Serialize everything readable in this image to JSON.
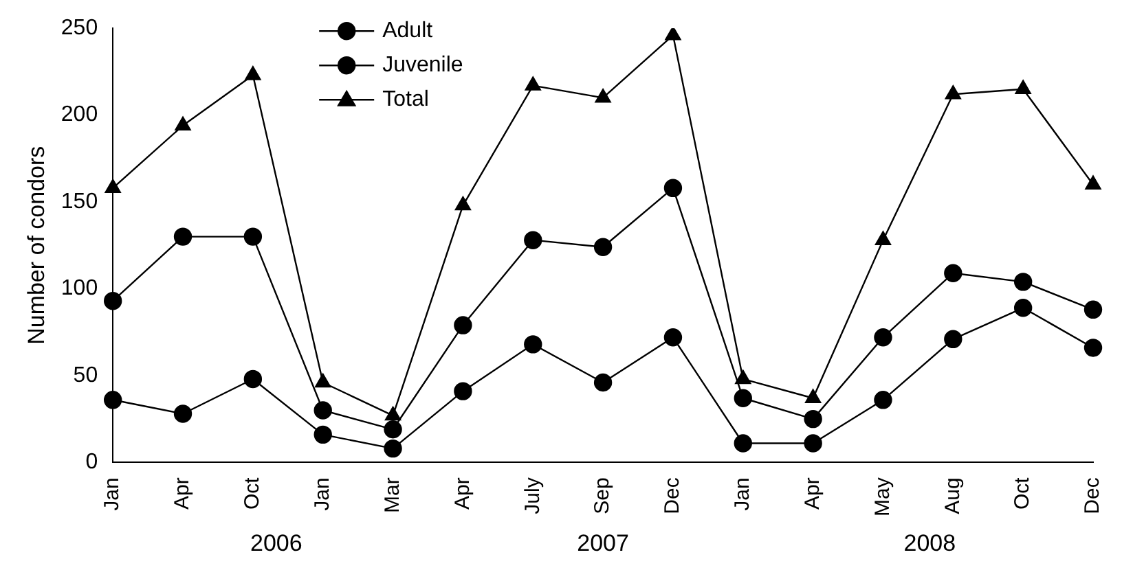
{
  "chart_data": {
    "type": "line",
    "ylabel": "Number of condors",
    "categories": [
      "Jan",
      "Apr",
      "Oct",
      "Jan",
      "Mar",
      "Apr",
      "July",
      "Sep",
      "Dec",
      "Jan",
      "Apr",
      "May",
      "Aug",
      "Oct",
      "Dec"
    ],
    "series": [
      {
        "name": "Adult",
        "color": "#000000",
        "marker": "circle",
        "values": [
          93,
          130,
          130,
          30,
          19,
          79,
          128,
          124,
          158,
          37,
          25,
          72,
          109,
          104,
          88
        ]
      },
      {
        "name": "Juvenile",
        "color": "#000000",
        "marker": "circle",
        "values": [
          36,
          28,
          48,
          16,
          8,
          41,
          68,
          46,
          72,
          11,
          11,
          36,
          71,
          89,
          66
        ]
      },
      {
        "name": "Total",
        "color": "#000000",
        "marker": "triangle",
        "values": [
          158,
          194,
          223,
          46,
          27,
          148,
          217,
          210,
          246,
          48,
          37,
          128,
          212,
          215,
          160
        ]
      }
    ],
    "annotations": [
      "2006",
      "2007",
      "2008"
    ],
    "ylim": [
      0,
      250
    ],
    "yticks": [
      0,
      50,
      100,
      150,
      200,
      250
    ],
    "grid": false,
    "legend": "top left"
  }
}
